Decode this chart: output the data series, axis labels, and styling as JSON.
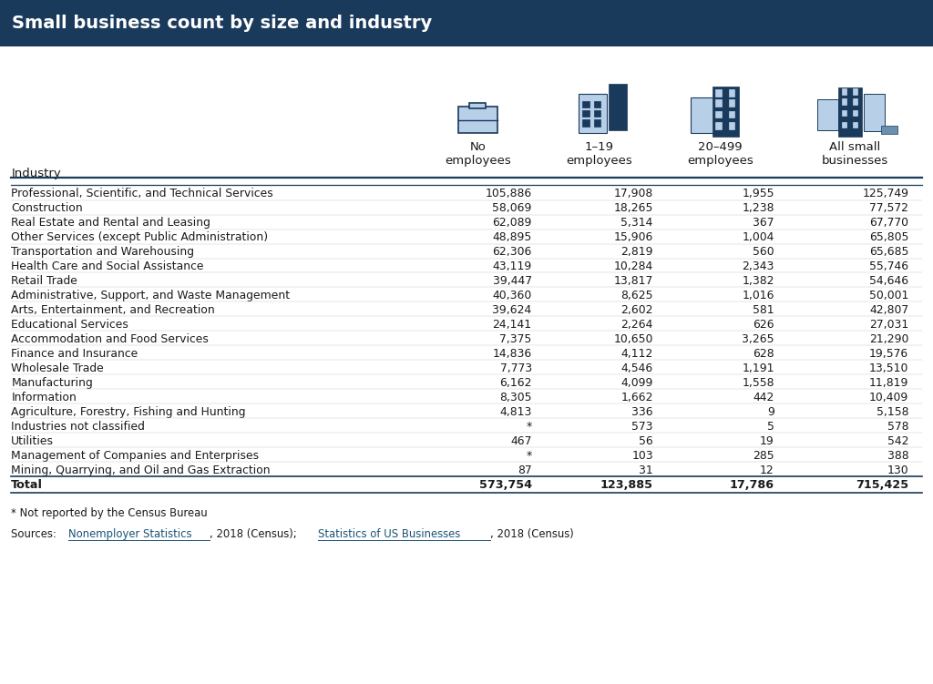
{
  "title": "Small business count by size and industry",
  "title_bg_color": "#1a3a5c",
  "title_text_color": "#ffffff",
  "industries": [
    "Professional, Scientific, and Technical Services",
    "Construction",
    "Real Estate and Rental and Leasing",
    "Other Services (except Public Administration)",
    "Transportation and Warehousing",
    "Health Care and Social Assistance",
    "Retail Trade",
    "Administrative, Support, and Waste Management",
    "Arts, Entertainment, and Recreation",
    "Educational Services",
    "Accommodation and Food Services",
    "Finance and Insurance",
    "Wholesale Trade",
    "Manufacturing",
    "Information",
    "Agriculture, Forestry, Fishing and Hunting",
    "Industries not classified",
    "Utilities",
    "Management of Companies and Enterprises",
    "Mining, Quarrying, and Oil and Gas Extraction"
  ],
  "no_employees": [
    "105,886",
    "58,069",
    "62,089",
    "48,895",
    "62,306",
    "43,119",
    "39,447",
    "40,360",
    "39,624",
    "24,141",
    "7,375",
    "14,836",
    "7,773",
    "6,162",
    "8,305",
    "4,813",
    "*",
    "467",
    "*",
    "87"
  ],
  "emp_1_19": [
    "17,908",
    "18,265",
    "5,314",
    "15,906",
    "2,819",
    "10,284",
    "13,817",
    "8,625",
    "2,602",
    "2,264",
    "10,650",
    "4,112",
    "4,546",
    "4,099",
    "1,662",
    "336",
    "573",
    "56",
    "103",
    "31"
  ],
  "emp_20_499": [
    "1,955",
    "1,238",
    "367",
    "1,004",
    "560",
    "2,343",
    "1,382",
    "1,016",
    "581",
    "626",
    "3,265",
    "628",
    "1,191",
    "1,558",
    "442",
    "9",
    "5",
    "19",
    "285",
    "12"
  ],
  "all_small": [
    "125,749",
    "77,572",
    "67,770",
    "65,805",
    "65,685",
    "55,746",
    "54,646",
    "50,001",
    "42,807",
    "27,031",
    "21,290",
    "19,576",
    "13,510",
    "11,819",
    "10,409",
    "5,158",
    "578",
    "542",
    "388",
    "130"
  ],
  "total_row": [
    "Total",
    "573,754",
    "123,885",
    "17,786",
    "715,425"
  ],
  "col_headers": [
    "No\nemployees",
    "1–19\nemployees",
    "20–499\nemployees",
    "All small\nbusinesses"
  ],
  "footnote": "* Not reported by the Census Bureau",
  "source_plain1": "Sources: ",
  "source_link1": "Nonemployer Statistics",
  "source_mid": ", 2018 (Census); ",
  "source_link2": "Statistics of US Businesses",
  "source_end": ", 2018 (Census)",
  "bg_color": "#ffffff",
  "table_text_color": "#1a1a1a",
  "header_line_color": "#1a3a5c",
  "link_color": "#1a5276",
  "icon_light": "#b8cfe8",
  "icon_dark": "#1a3a5c",
  "icon_mid": "#6a8faf"
}
